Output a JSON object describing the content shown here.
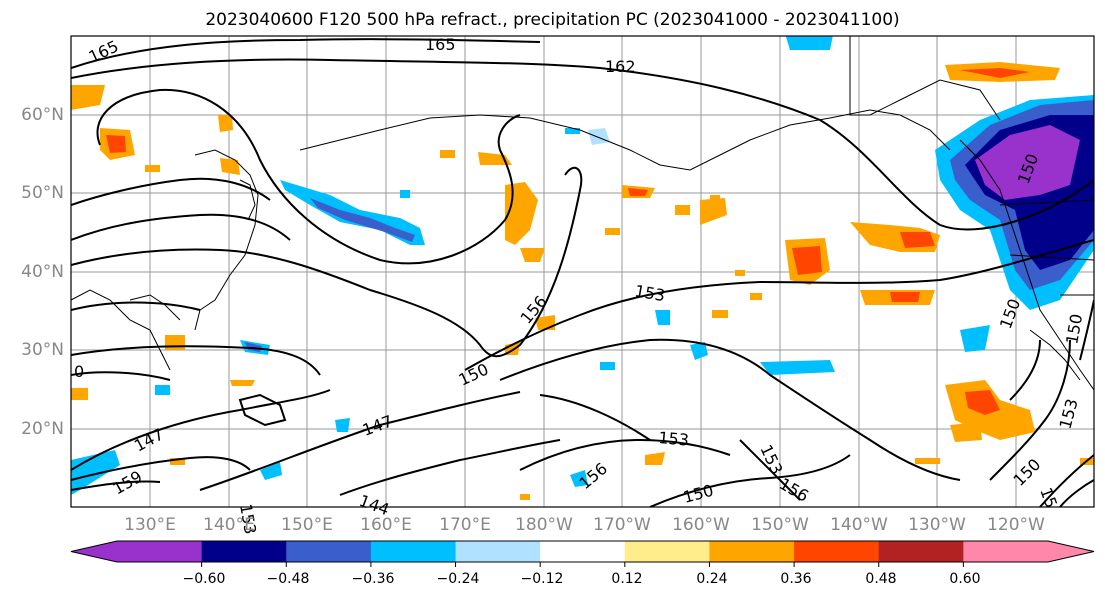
{
  "title": "2023040600 F120 500 hPa refract., precipitation PC (2023041000 - 2023041100)",
  "lat_labels": [
    "60°N",
    "50°N",
    "40°N",
    "30°N",
    "20°N"
  ],
  "lon_labels": [
    "130°E",
    "140°E",
    "150°E",
    "160°E",
    "170°E",
    "180°W",
    "170°W",
    "160°W",
    "150°W",
    "140°W",
    "130°W",
    "120°W"
  ],
  "contour_labels": [
    "165",
    "165",
    "162",
    "156",
    "153",
    "150",
    "150",
    "147",
    "147",
    "159",
    "153",
    "144",
    "156",
    "153",
    "153",
    "156",
    "150",
    "150",
    "153",
    "150",
    "15",
    "150",
    "0"
  ],
  "colorbar": {
    "ticks": [
      "−0.60",
      "−0.48",
      "−0.36",
      "−0.24",
      "−0.12",
      "0.12",
      "0.24",
      "0.36",
      "0.48",
      "0.60"
    ],
    "colors": [
      "#9932cc",
      "#00008b",
      "#3a5fcd",
      "#00bfff",
      "#b0e2ff",
      "#ffffff",
      "#ffec8b",
      "#ffa500",
      "#ff4500",
      "#b22222",
      "#ff88aa"
    ]
  },
  "palette": {
    "neg_deep": "#9932cc",
    "neg_navy": "#00008b",
    "neg_blue": "#3a5fcd",
    "neg_sky": "#00bfff",
    "neg_light": "#b0e2ff",
    "pos_yellow": "#ffec8b",
    "pos_orange": "#ffa500",
    "pos_red": "#ff4500",
    "pos_brick": "#b22222",
    "pos_pink": "#ff88aa"
  }
}
